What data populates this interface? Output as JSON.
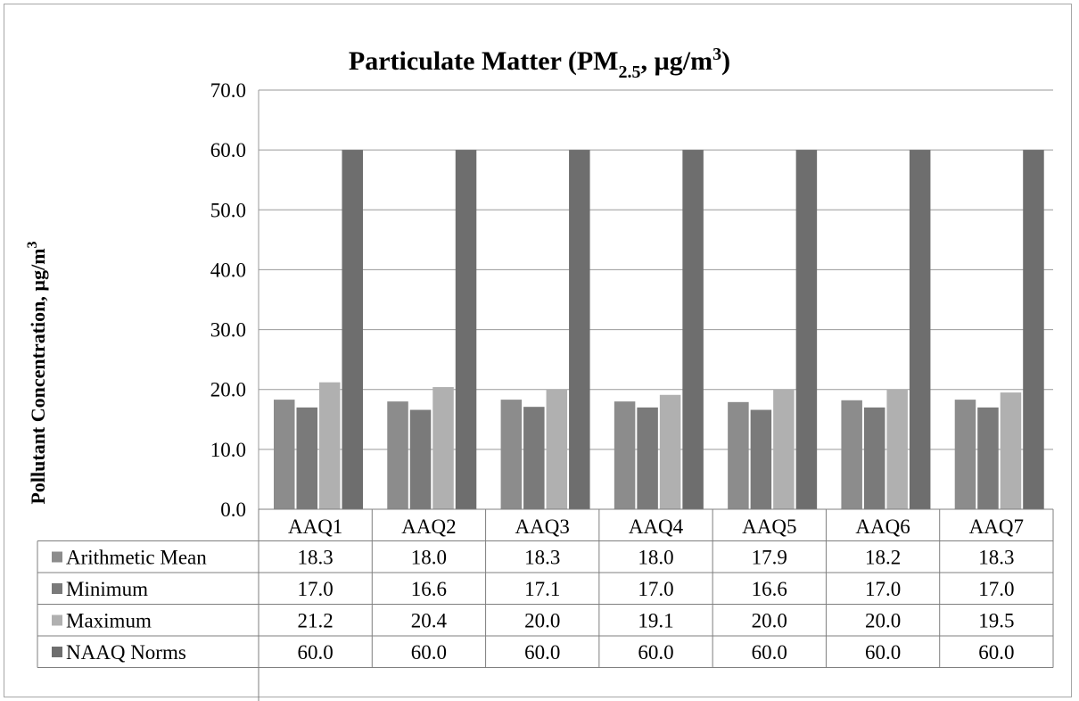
{
  "chart_data": {
    "type": "bar",
    "title": {
      "main": "Particulate Matter (PM",
      "sub": "2.5",
      "mid": ", µg/m",
      "sup": "3",
      "end": ")"
    },
    "ylabel": "Pollutant Concentration, µg/m",
    "ylabel_sup": "3",
    "ylim": [
      0,
      70
    ],
    "yticks": [
      "0.0",
      "10.0",
      "20.0",
      "30.0",
      "40.0",
      "50.0",
      "60.0",
      "70.0"
    ],
    "categories": [
      "AAQ1",
      "AAQ2",
      "AAQ3",
      "AAQ4",
      "AAQ5",
      "AAQ6",
      "AAQ7"
    ],
    "series": [
      {
        "name": "Arithmetic Mean",
        "color": "#8c8c8c",
        "values": [
          18.3,
          18.0,
          18.3,
          18.0,
          17.9,
          18.2,
          18.3
        ],
        "labels": [
          "18.3",
          "18.0",
          "18.3",
          "18.0",
          "17.9",
          "18.2",
          "18.3"
        ]
      },
      {
        "name": "Minimum",
        "color": "#7a7a7a",
        "values": [
          17.0,
          16.6,
          17.1,
          17.0,
          16.6,
          17.0,
          17.0
        ],
        "labels": [
          "17.0",
          "16.6",
          "17.1",
          "17.0",
          "16.6",
          "17.0",
          "17.0"
        ]
      },
      {
        "name": "Maximum",
        "color": "#b0b0b0",
        "values": [
          21.2,
          20.4,
          20.0,
          19.1,
          20.0,
          20.0,
          19.5
        ],
        "labels": [
          "21.2",
          "20.4",
          "20.0",
          "19.1",
          "20.0",
          "20.0",
          "19.5"
        ]
      },
      {
        "name": "NAAQ Norms",
        "color": "#6e6e6e",
        "values": [
          60.0,
          60.0,
          60.0,
          60.0,
          60.0,
          60.0,
          60.0
        ],
        "labels": [
          "60.0",
          "60.0",
          "60.0",
          "60.0",
          "60.0",
          "60.0",
          "60.0"
        ]
      }
    ],
    "grid": true,
    "legend": "data-table"
  }
}
